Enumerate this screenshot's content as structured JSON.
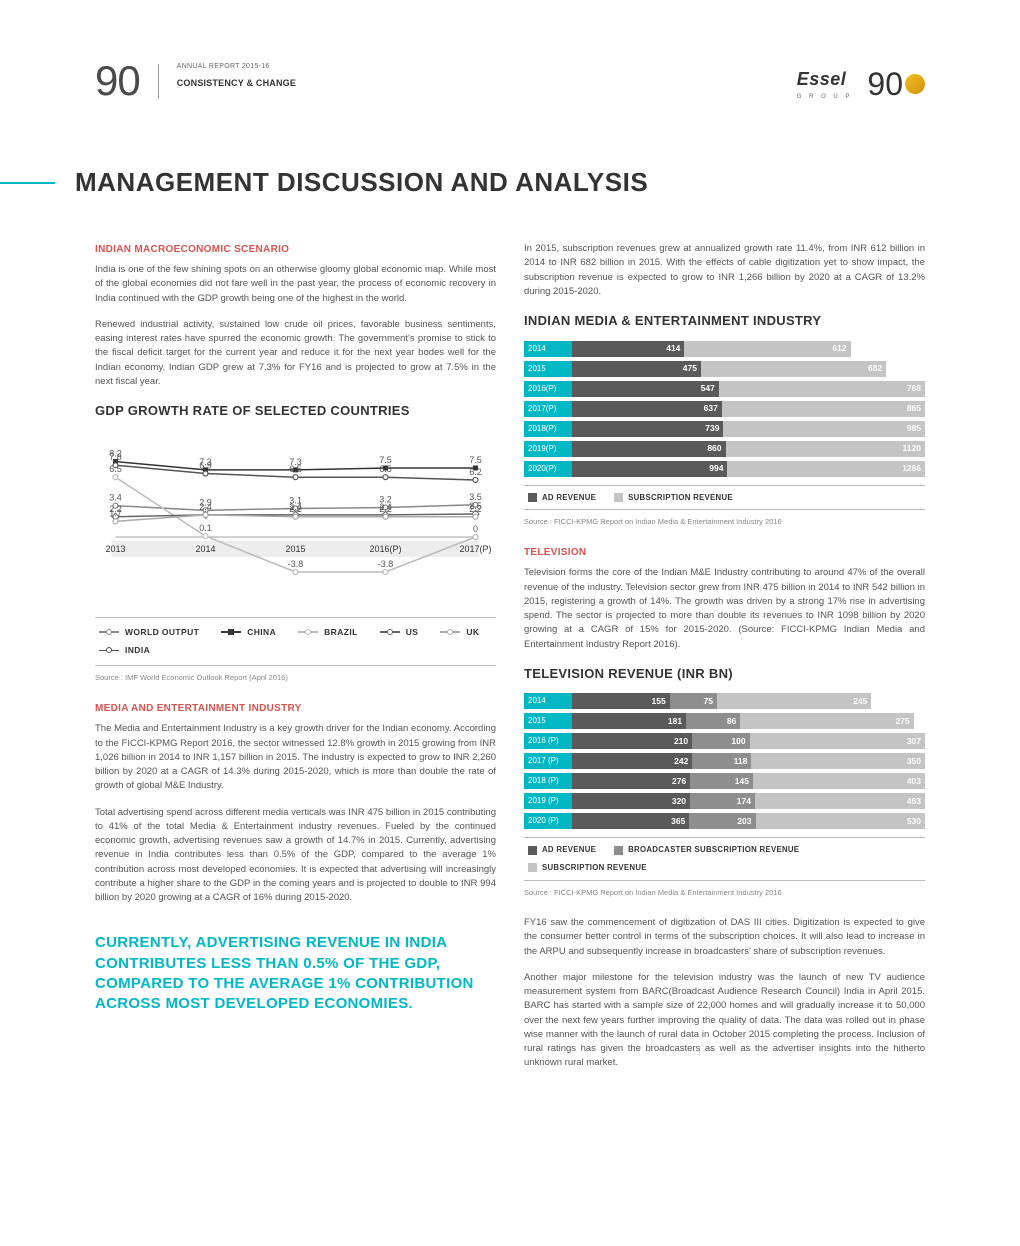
{
  "header": {
    "page_number": "90",
    "annual_report": "ANNUAL REPORT 2015-16",
    "tagline": "CONSISTENCY & CHANGE",
    "logo_name": "Essel",
    "logo_sub": "G R O U P",
    "anniversary": "90"
  },
  "title": "MANAGEMENT DISCUSSION AND ANALYSIS",
  "colors": {
    "accent": "#00b8c4",
    "heading_red": "#d9534f",
    "text": "#555555",
    "bar_dark": "#5a5a5a",
    "bar_mid": "#8e8e8e",
    "bar_light": "#c4c4c4"
  },
  "left": {
    "macro_heading": "INDIAN MACROECONOMIC SCENARIO",
    "macro_p1": "India is one of the few shining spots on an otherwise gloomy global economic map. While most of the global economies did not fare well in the past year, the process of economic recovery in India continued with the GDP growth being one of the highest in the world.",
    "macro_p2": "Renewed industrial activity, sustained low crude oil prices, favorable business sentiments, easing interest rates have spurred the economic growth. The government's promise to stick to the fiscal deficit target for the current year and reduce it for the next year bodes well for the Indian economy. Indian GDP grew at 7.3% for FY16 and is projected to grow at 7.5% in the next fiscal year.",
    "gdp_heading": "GDP GROWTH RATE OF SELECTED COUNTRIES",
    "gdp_chart": {
      "type": "line",
      "categories": [
        "2013",
        "2014",
        "2015",
        "2016(P)",
        "2017(P)"
      ],
      "ylim": [
        -5,
        10
      ],
      "series": [
        {
          "name": "WORLD OUTPUT",
          "color": "#888888",
          "marker": "circle",
          "values": [
            3.4,
            2.9,
            3.1,
            3.2,
            3.5
          ]
        },
        {
          "name": "CHINA",
          "color": "#333333",
          "marker": "square",
          "values": [
            8.2,
            7.3,
            7.3,
            7.5,
            7.5
          ]
        },
        {
          "name": "BRAZIL",
          "color": "#bbbbbb",
          "marker": "circle",
          "values": [
            6.5,
            0.1,
            -3.8,
            -3.8,
            0.0
          ]
        },
        {
          "name": "US",
          "color": "#666666",
          "marker": "diamond",
          "values": [
            2.2,
            2.4,
            2.4,
            2.4,
            2.5
          ]
        },
        {
          "name": "UK",
          "color": "#aaaaaa",
          "marker": "circle",
          "values": [
            1.7,
            2.4,
            2.2,
            2.2,
            2.2
          ]
        },
        {
          "name": "INDIA",
          "color": "#555555",
          "marker": "circle",
          "values": [
            7.8,
            6.9,
            6.5,
            6.5,
            6.2
          ]
        }
      ],
      "extra_labels": [
        {
          "cat_idx": 0,
          "v": 8.2
        },
        {
          "cat_idx": 0,
          "v": 7.8
        },
        {
          "cat_idx": 0,
          "v": 6.5
        },
        {
          "cat_idx": 0,
          "v": 3.4
        },
        {
          "cat_idx": 0,
          "v": 2.2
        },
        {
          "cat_idx": 0,
          "v": 1.7
        },
        {
          "cat_idx": 1,
          "v": 7.3
        },
        {
          "cat_idx": 1,
          "v": 6.9
        },
        {
          "cat_idx": 1,
          "v": 2.9
        },
        {
          "cat_idx": 1,
          "v": 2.4
        },
        {
          "cat_idx": 1,
          "v": 0.1
        },
        {
          "cat_idx": 2,
          "v": 7.3
        },
        {
          "cat_idx": 2,
          "v": 6.5
        },
        {
          "cat_idx": 2,
          "v": 3.1
        },
        {
          "cat_idx": 2,
          "v": 2.4
        },
        {
          "cat_idx": 2,
          "v": 2.2
        },
        {
          "cat_idx": 2,
          "v": -3.8
        },
        {
          "cat_idx": 3,
          "v": 7.5
        },
        {
          "cat_idx": 3,
          "v": 6.5
        },
        {
          "cat_idx": 3,
          "v": 3.2
        },
        {
          "cat_idx": 3,
          "v": 2.4
        },
        {
          "cat_idx": 3,
          "v": 2.2
        },
        {
          "cat_idx": 3,
          "v": -3.8
        },
        {
          "cat_idx": 4,
          "v": 7.5
        },
        {
          "cat_idx": 4,
          "v": 6.2
        },
        {
          "cat_idx": 4,
          "v": 3.5
        },
        {
          "cat_idx": 4,
          "v": 2.5
        },
        {
          "cat_idx": 4,
          "v": 2.2
        },
        {
          "cat_idx": 4,
          "v": 0.0
        }
      ]
    },
    "gdp_source": "Source : IMF World Economic Outlook Report (April 2016)",
    "me_heading": "MEDIA AND ENTERTAINMENT INDUSTRY",
    "me_p1": "The Media and Entertainment Industry is a key growth driver for the Indian economy. According to the FICCI-KPMG Report 2016, the sector witnessed 12.8% growth in 2015 growing from INR 1,026 billion in 2014 to INR 1,157 billion in 2015. The industry is expected to grow to INR 2,260 billion by 2020 at a CAGR of 14.3% during 2015-2020, which is more than double the rate of growth of global M&E Industry.",
    "me_p2": "Total advertising spend across different media verticals was INR 475 billion in 2015 contributing to 41% of the total Media & Entertainment industry revenues. Fueled by the continued economic growth, advertising revenues saw a growth of 14.7% in 2015. Currently, advertising revenue in India contributes less than 0.5% of the GDP, compared to the average 1% contribution across most developed economies. It is expected that advertising will increasingly contribute a higher share to the GDP in the coming years and is projected to double to INR 994 billion by 2020 growing at a CAGR of 16% during 2015-2020.",
    "callout": "CURRENTLY, ADVERTISING REVENUE IN INDIA CONTRIBUTES LESS THAN 0.5% OF THE GDP, COMPARED TO THE AVERAGE 1% CONTRIBUTION ACROSS MOST DEVELOPED ECONOMIES."
  },
  "right": {
    "intro_p": "In 2015, subscription revenues grew at annualized growth rate 11.4%, from INR 612 billion in 2014 to INR 682 billion in 2015. With the effects of cable digitization yet to show impact, the subscription revenue is expected to grow to INR 1,266 billion by 2020 at a CAGR of 13.2% during 2015-2020.",
    "ime_heading": "INDIAN MEDIA & ENTERTAINMENT INDUSTRY",
    "ime_chart": {
      "type": "stacked-bar-h",
      "max": 1300,
      "rows": [
        {
          "label": "2014",
          "ad": 414,
          "sub": 612
        },
        {
          "label": "2015",
          "ad": 475,
          "sub": 682
        },
        {
          "label": "2016(P)",
          "ad": 547,
          "sub": 768
        },
        {
          "label": "2017(P)",
          "ad": 637,
          "sub": 865
        },
        {
          "label": "2018(P)",
          "ad": 739,
          "sub": 985
        },
        {
          "label": "2019(P)",
          "ad": 860,
          "sub": 1120
        },
        {
          "label": "2020(P)",
          "ad": 994,
          "sub": 1266
        }
      ],
      "legend": [
        "AD REVENUE",
        "SUBSCRIPTION REVENUE"
      ]
    },
    "ime_source": "Source : FICCI-KPMG Report on Indian Media & Entertainment Industry 2016",
    "tv_heading": "TELEVISION",
    "tv_p": "Television forms the core of the Indian M&E Industry contributing to around 47% of the overall revenue of the industry. Television sector grew from INR 475 billion in 2014 to INR 542 billion in 2015, registering a growth of 14%. The growth was driven by a strong 17% rise in advertising spend. The sector is projected to more than double its revenues to INR 1098 billion by 2020 growing at a CAGR of 15% for 2015-2020. (Source: FICCI-KPMG Indian Media and Entertainment Industry Report 2016).",
    "tvrev_heading": "TELEVISION REVENUE (INR BN)",
    "tvrev_chart": {
      "type": "stacked-bar-h",
      "max": 560,
      "rows": [
        {
          "label": "2014",
          "ad": 155,
          "bsub": 75,
          "sub": 245
        },
        {
          "label": "2015",
          "ad": 181,
          "bsub": 86,
          "sub": 275
        },
        {
          "label": "2016 (P)",
          "ad": 210,
          "bsub": 100,
          "sub": 307
        },
        {
          "label": "2017 (P)",
          "ad": 242,
          "bsub": 118,
          "sub": 350
        },
        {
          "label": "2018 (P)",
          "ad": 276,
          "bsub": 145,
          "sub": 403
        },
        {
          "label": "2019 (P)",
          "ad": 320,
          "bsub": 174,
          "sub": 463
        },
        {
          "label": "2020 (P)",
          "ad": 365,
          "bsub": 203,
          "sub": 530
        }
      ],
      "legend": [
        "AD REVENUE",
        "BROADCASTER SUBSCRIPTION REVENUE",
        "SUBSCRIPTION REVENUE"
      ]
    },
    "tvrev_source": "Source : FICCI-KPMG Report on Indian Media & Entertainment Industry 2016",
    "trail_p1": "FY16 saw the commencement of digitization of DAS III cities. Digitization is expected to give the consumer better control in terms of the subscription choices. It will also lead to increase in the ARPU and subsequently increase in broadcasters' share of subscription revenues.",
    "trail_p2": "Another major milestone for the television industry was the launch of new TV audience measurement system from BARC(Broadcast Audience Research Council) India in April 2015. BARC has started with a sample size of 22,000 homes and will gradually increase it to 50,000 over the next few years further improving the quality of data. The data was rolled out in phase wise manner with the launch of rural data in October 2015 completing the process. Inclusion of rural ratings has given the broadcasters as well as the advertiser insights into the hitherto unknown rural market."
  }
}
